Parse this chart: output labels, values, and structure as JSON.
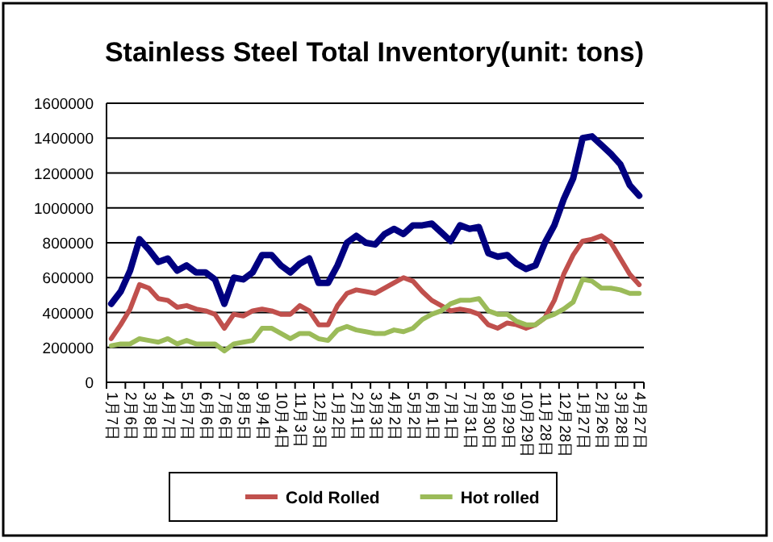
{
  "chart_data": {
    "type": "line",
    "title": "Stainless Steel Total Inventory(unit: tons)",
    "categories": [
      "1月7日",
      null,
      "2月6日",
      null,
      "3月8日",
      null,
      "4月7日",
      null,
      "5月7日",
      null,
      "6月6日",
      null,
      "7月6日",
      null,
      "8月5日",
      null,
      "9月4日",
      null,
      "10月4日",
      null,
      "11月3日",
      null,
      "12月3日",
      null,
      "1月2日",
      null,
      "2月1日",
      null,
      "3月3日",
      null,
      "4月2日",
      null,
      "5月2日",
      null,
      "6月1日",
      null,
      "7月1日",
      null,
      "7月31日",
      null,
      "8月30日",
      null,
      "9月29日",
      null,
      "10月29日",
      null,
      "11月28日",
      null,
      "12月28日",
      null,
      "1月27日",
      null,
      "2月26日",
      null,
      "3月28日",
      null,
      "4月27日"
    ],
    "series": [
      {
        "color": "#000080",
        "values": [
          450000,
          520000,
          640000,
          820000,
          760000,
          690000,
          710000,
          640000,
          670000,
          630000,
          630000,
          590000,
          450000,
          600000,
          590000,
          630000,
          730000,
          730000,
          670000,
          630000,
          680000,
          710000,
          570000,
          570000,
          670000,
          800000,
          840000,
          800000,
          790000,
          850000,
          880000,
          850000,
          900000,
          900000,
          910000,
          860000,
          810000,
          900000,
          880000,
          890000,
          740000,
          720000,
          730000,
          680000,
          650000,
          670000,
          800000,
          900000,
          1050000,
          1170000,
          1400000,
          1410000,
          1360000,
          1310000,
          1250000,
          1130000,
          1070000
        ]
      },
      {
        "name": "Cold Rolled",
        "color": "#c0504d",
        "values": [
          250000,
          330000,
          420000,
          560000,
          540000,
          480000,
          470000,
          430000,
          440000,
          420000,
          410000,
          390000,
          310000,
          390000,
          380000,
          410000,
          420000,
          410000,
          390000,
          390000,
          440000,
          410000,
          330000,
          330000,
          440000,
          510000,
          530000,
          520000,
          510000,
          540000,
          570000,
          600000,
          580000,
          520000,
          470000,
          440000,
          410000,
          420000,
          410000,
          390000,
          330000,
          310000,
          340000,
          330000,
          310000,
          330000,
          370000,
          470000,
          620000,
          730000,
          810000,
          820000,
          840000,
          800000,
          710000,
          620000,
          560000
        ]
      },
      {
        "name": "Hot rolled",
        "color": "#9bbb59",
        "values": [
          210000,
          220000,
          220000,
          250000,
          240000,
          230000,
          250000,
          220000,
          240000,
          220000,
          220000,
          220000,
          180000,
          220000,
          230000,
          240000,
          310000,
          310000,
          280000,
          250000,
          280000,
          280000,
          250000,
          240000,
          300000,
          320000,
          300000,
          290000,
          280000,
          280000,
          300000,
          290000,
          310000,
          360000,
          390000,
          410000,
          450000,
          470000,
          470000,
          480000,
          410000,
          390000,
          390000,
          350000,
          330000,
          330000,
          370000,
          390000,
          420000,
          460000,
          590000,
          580000,
          540000,
          540000,
          530000,
          510000,
          510000
        ]
      }
    ],
    "ylim": [
      0,
      1600000
    ],
    "yticks": [
      0,
      200000,
      400000,
      600000,
      800000,
      1000000,
      1200000,
      1400000,
      1600000
    ],
    "grid": "y",
    "legend": "bottom",
    "line_style": "solid"
  }
}
